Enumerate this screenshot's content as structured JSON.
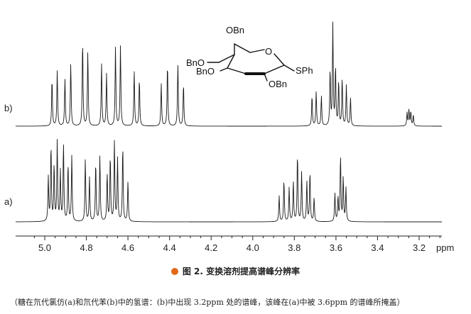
{
  "chart_data": {
    "type": "line",
    "title": "",
    "xlabel": "ppm",
    "ylabel": "",
    "x_reversed": true,
    "xlim": [
      3.1,
      5.05
    ],
    "x_ticks": [
      "5.0",
      "4.8",
      "4.6",
      "4.4",
      "4.2",
      "4.0",
      "3.8",
      "3.6",
      "3.4",
      "3.2"
    ],
    "x_tick_values": [
      5.0,
      4.8,
      4.6,
      4.4,
      4.2,
      4.0,
      3.8,
      3.6,
      3.4,
      3.2
    ],
    "series": [
      {
        "name": "b)",
        "peaks": [
          {
            "ppm": 4.965,
            "h": 0.47
          },
          {
            "ppm": 4.94,
            "h": 0.55
          },
          {
            "ppm": 4.903,
            "h": 0.47
          },
          {
            "ppm": 4.875,
            "h": 0.62
          },
          {
            "ppm": 4.818,
            "h": 0.85
          },
          {
            "ppm": 4.793,
            "h": 0.74
          },
          {
            "ppm": 4.727,
            "h": 0.62
          },
          {
            "ppm": 4.703,
            "h": 0.52
          },
          {
            "ppm": 4.66,
            "h": 0.78
          },
          {
            "ppm": 4.636,
            "h": 0.8
          },
          {
            "ppm": 4.57,
            "h": 0.55
          },
          {
            "ppm": 4.545,
            "h": 0.47
          },
          {
            "ppm": 4.44,
            "h": 0.42
          },
          {
            "ppm": 4.41,
            "h": 0.62
          },
          {
            "ppm": 4.36,
            "h": 0.62
          },
          {
            "ppm": 4.333,
            "h": 0.42
          },
          {
            "ppm": 3.715,
            "h": 0.3
          },
          {
            "ppm": 3.695,
            "h": 0.34
          },
          {
            "ppm": 3.67,
            "h": 0.3
          },
          {
            "ppm": 3.628,
            "h": 0.55
          },
          {
            "ppm": 3.615,
            "h": 1.0
          },
          {
            "ppm": 3.602,
            "h": 0.58
          },
          {
            "ppm": 3.587,
            "h": 0.44
          },
          {
            "ppm": 3.57,
            "h": 0.47
          },
          {
            "ppm": 3.55,
            "h": 0.4
          },
          {
            "ppm": 3.53,
            "h": 0.28
          },
          {
            "ppm": 3.258,
            "h": 0.13
          },
          {
            "ppm": 3.249,
            "h": 0.16
          },
          {
            "ppm": 3.24,
            "h": 0.14
          },
          {
            "ppm": 3.228,
            "h": 0.11
          }
        ]
      },
      {
        "name": "a)",
        "peaks": [
          {
            "ppm": 4.983,
            "h": 0.55
          },
          {
            "ppm": 4.97,
            "h": 0.95
          },
          {
            "ppm": 4.955,
            "h": 0.7
          },
          {
            "ppm": 4.94,
            "h": 1.0
          },
          {
            "ppm": 4.925,
            "h": 0.62
          },
          {
            "ppm": 4.91,
            "h": 0.98
          },
          {
            "ppm": 4.888,
            "h": 0.72
          },
          {
            "ppm": 4.87,
            "h": 0.82
          },
          {
            "ppm": 4.805,
            "h": 0.78
          },
          {
            "ppm": 4.785,
            "h": 0.55
          },
          {
            "ppm": 4.755,
            "h": 0.74
          },
          {
            "ppm": 4.735,
            "h": 0.82
          },
          {
            "ppm": 4.7,
            "h": 0.6
          },
          {
            "ppm": 4.685,
            "h": 0.82
          },
          {
            "ppm": 4.665,
            "h": 1.0
          },
          {
            "ppm": 4.65,
            "h": 0.78
          },
          {
            "ppm": 4.625,
            "h": 0.95
          },
          {
            "ppm": 4.6,
            "h": 0.5
          },
          {
            "ppm": 3.873,
            "h": 0.32
          },
          {
            "ppm": 3.85,
            "h": 0.52
          },
          {
            "ppm": 3.825,
            "h": 0.42
          },
          {
            "ppm": 3.805,
            "h": 0.5
          },
          {
            "ppm": 3.785,
            "h": 0.85
          },
          {
            "ppm": 3.765,
            "h": 0.62
          },
          {
            "ppm": 3.74,
            "h": 0.5
          },
          {
            "ppm": 3.725,
            "h": 0.62
          },
          {
            "ppm": 3.705,
            "h": 0.3
          },
          {
            "ppm": 3.605,
            "h": 0.35
          },
          {
            "ppm": 3.59,
            "h": 0.3
          },
          {
            "ppm": 3.578,
            "h": 0.82
          },
          {
            "ppm": 3.565,
            "h": 0.55
          },
          {
            "ppm": 3.552,
            "h": 0.42
          }
        ]
      }
    ]
  },
  "molecule": {
    "labels": [
      "OBn",
      "O",
      "BnO",
      "BnO",
      "OBn",
      "SPh"
    ]
  },
  "colors": {
    "bullet": "#e06a1a",
    "trace": "#1a1a1a"
  },
  "caption": {
    "text": "图 2. 变换溶剂提高谱峰分辨率"
  },
  "note": {
    "text": "（糖在氘代氯仿(a)和氘代苯(b)中的氢谱：(b)中出现 3.2ppm 处的谱峰，该峰在(a)中被 3.6ppm 的谱峰所掩盖）"
  }
}
